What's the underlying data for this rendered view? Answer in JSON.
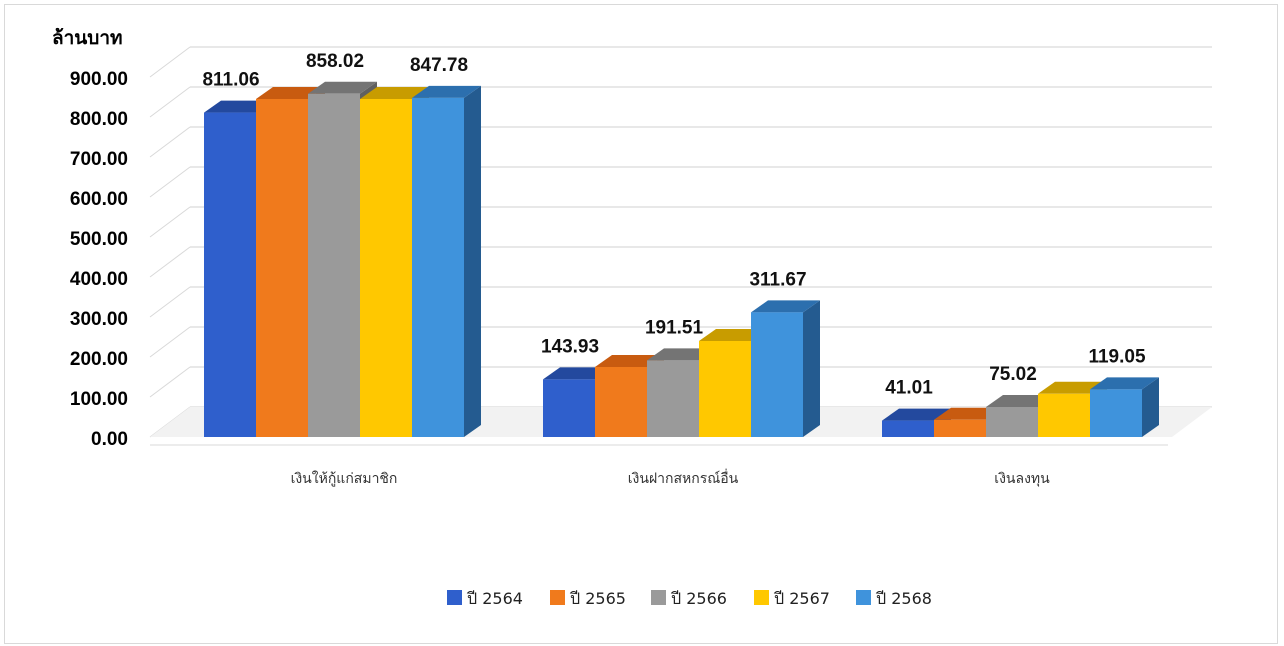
{
  "chart_data": {
    "type": "bar",
    "ylabel": "ล้านบาท",
    "ylim": [
      0,
      900
    ],
    "yticks": [
      "0.00",
      "100.00",
      "200.00",
      "300.00",
      "400.00",
      "500.00",
      "600.00",
      "700.00",
      "800.00",
      "900.00"
    ],
    "categories": [
      "เงินให้กู้แก่สมาชิก",
      "เงินฝากสหกรณ์อื่น",
      "เงินลงทุน"
    ],
    "series": [
      {
        "name": "ปี 2564",
        "color": "#2f5fcc",
        "top": "#23499e",
        "side": "#1e3f8a",
        "values": [
          811.06,
          143.93,
          41.01
        ],
        "labels": [
          "811.06",
          "143.93",
          "41.01"
        ]
      },
      {
        "name": "ปี 2565",
        "color": "#f07a1c",
        "top": "#c85b10",
        "side": "#a84c0d",
        "values": [
          845,
          175,
          43
        ],
        "labels": [
          "",
          "",
          ""
        ]
      },
      {
        "name": "ปี 2566",
        "color": "#9a9a9a",
        "top": "#747474",
        "side": "#606060",
        "values": [
          858.02,
          191.51,
          75.02
        ],
        "labels": [
          "858.02",
          "191.51",
          "75.02"
        ]
      },
      {
        "name": "ปี 2567",
        "color": "#ffc800",
        "top": "#c89c00",
        "side": "#a88200",
        "values": [
          845,
          240,
          108
        ],
        "labels": [
          "",
          "",
          ""
        ]
      },
      {
        "name": "ปี 2568",
        "color": "#3f93dc",
        "top": "#2c6fae",
        "side": "#245b90",
        "values": [
          847.78,
          311.67,
          119.05
        ],
        "labels": [
          "847.78",
          "311.67",
          "119.05"
        ]
      }
    ],
    "grid": true,
    "legend": "bottom"
  }
}
